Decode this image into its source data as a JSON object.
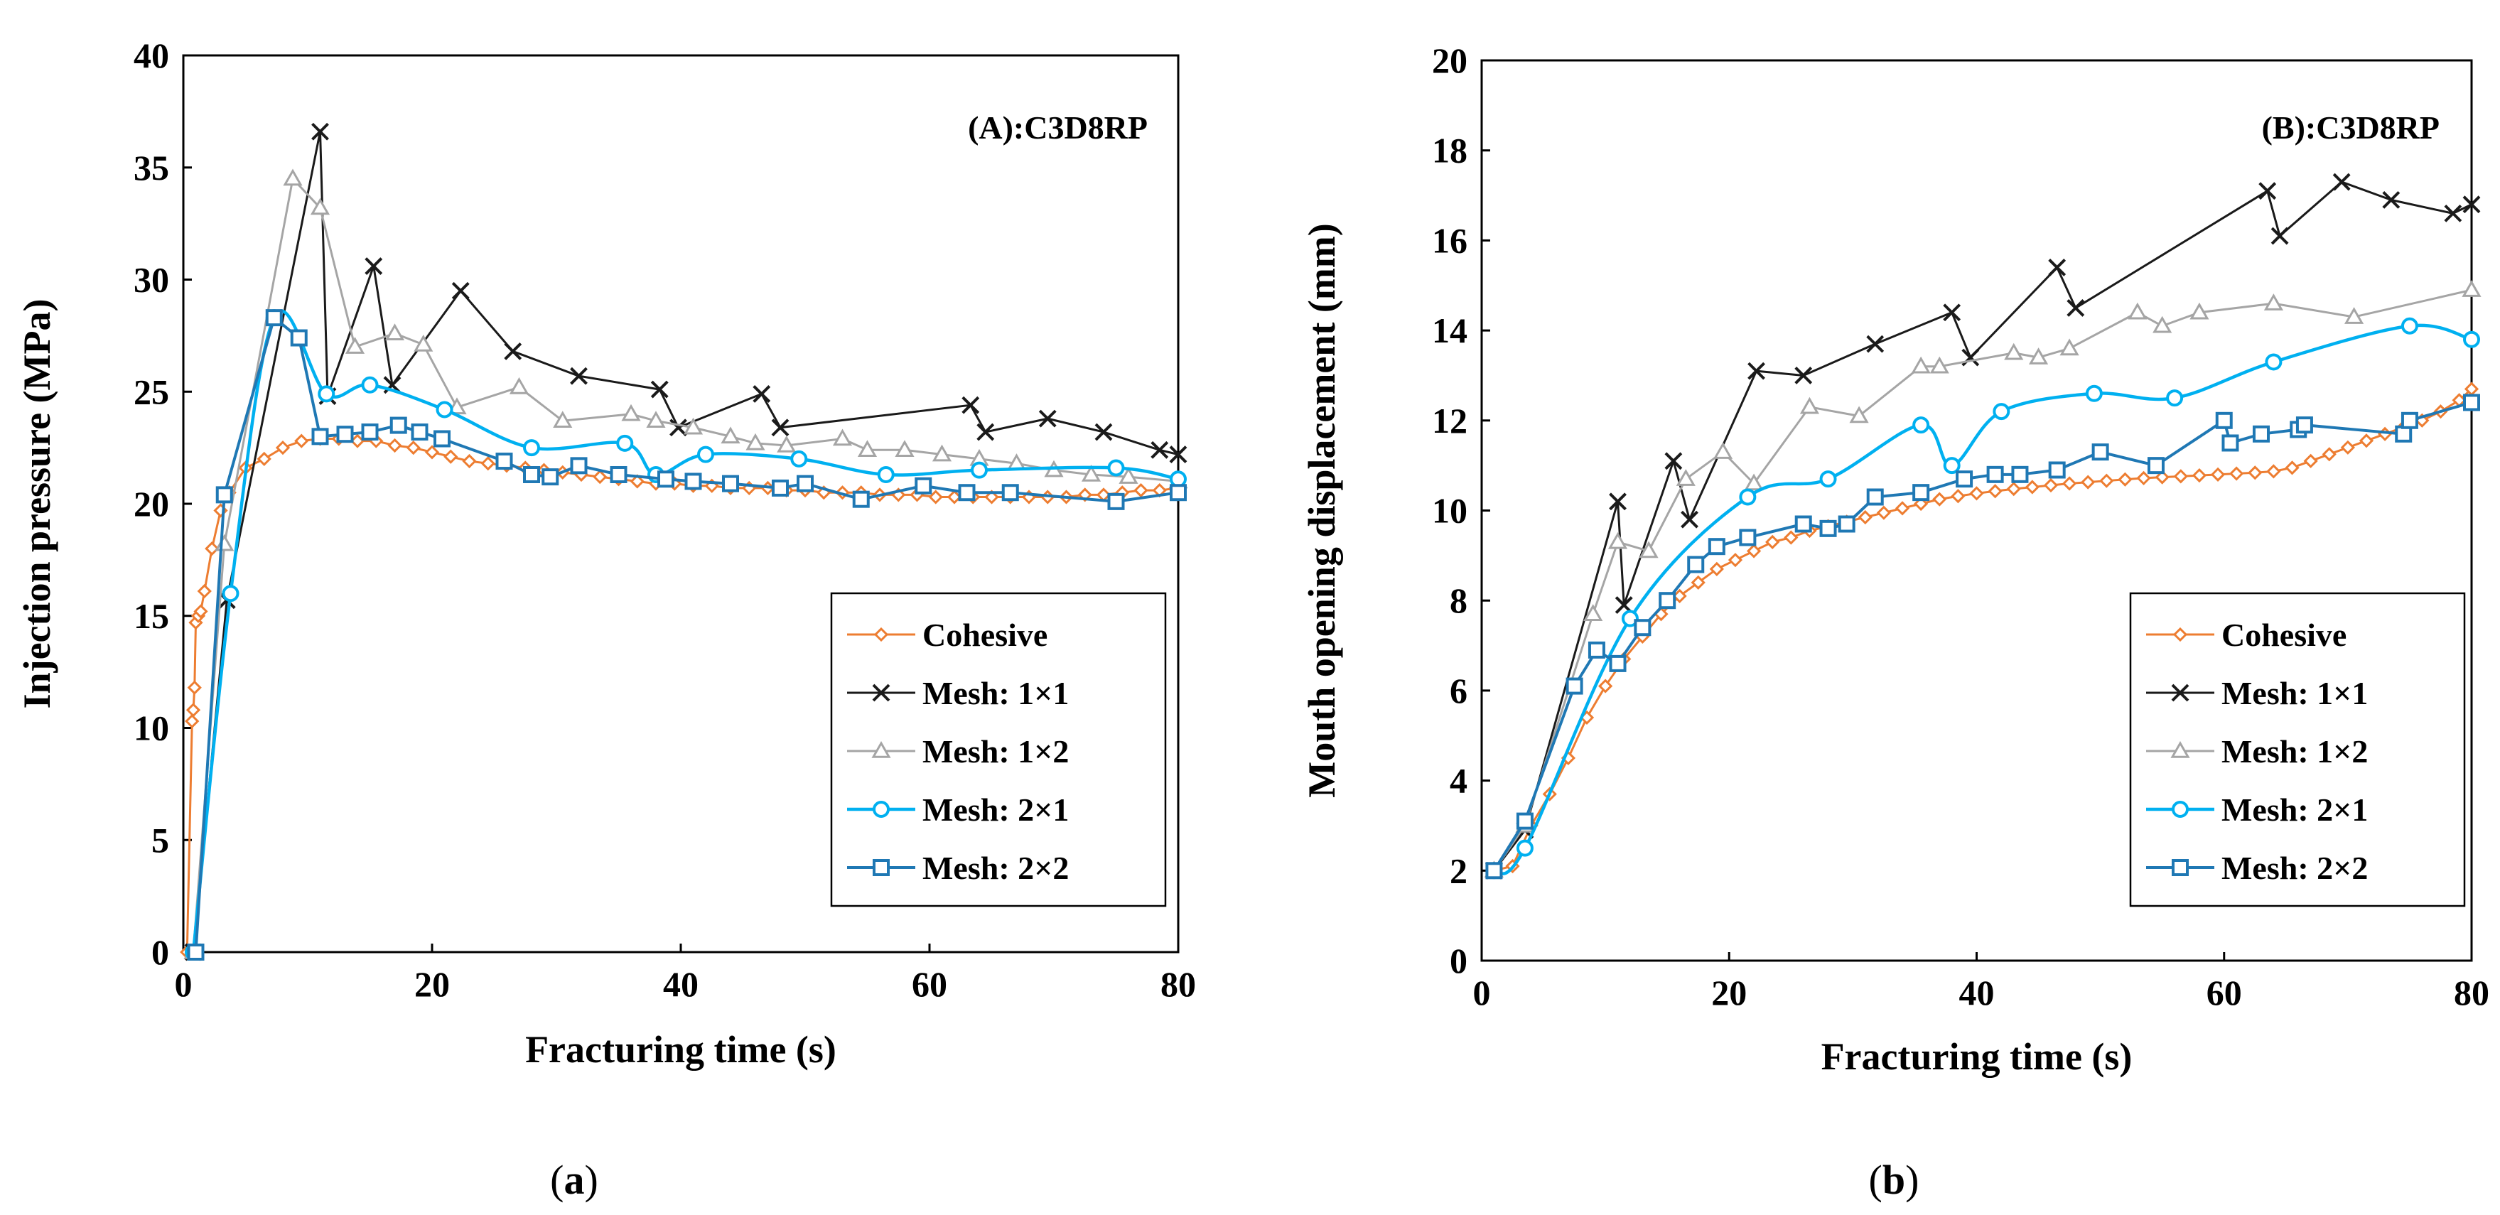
{
  "colors": {
    "cohesive": "#ED7D31",
    "mesh11": "#1A1A1A",
    "mesh12": "#A5A5A5",
    "mesh21": "#00B0F0",
    "mesh22": "#1F78B4",
    "grid": "#d0d0d0"
  },
  "captions": {
    "a": "a",
    "b": "b"
  },
  "chart_data": [
    {
      "type": "line",
      "panel": "a",
      "title": "(A):C3D8RP",
      "xlabel": "Fracturing time (s)",
      "ylabel": "Injection pressure (MPa)",
      "xlim": [
        0,
        80
      ],
      "ylim": [
        0,
        40
      ],
      "xticks": [
        0,
        20,
        40,
        60,
        80
      ],
      "yticks": [
        0,
        5,
        10,
        15,
        20,
        25,
        30,
        35,
        40
      ],
      "legend_position": "lower-right",
      "series": [
        {
          "name": "Cohesive",
          "key": "cohesive",
          "marker": "diamond",
          "smooth": false,
          "x": [
            0.3,
            0.7,
            0.8,
            0.9,
            1.0,
            1.2,
            1.4,
            1.7,
            2.3,
            3.0,
            3.7,
            5.0,
            6.5,
            8.0,
            9.5,
            11.0,
            12.5,
            14.0,
            15.5,
            17.0,
            18.5,
            20.0,
            21.5,
            23.0,
            24.5,
            26.0,
            27.5,
            29.0,
            30.5,
            32.0,
            33.5,
            35.0,
            36.5,
            38.0,
            39.5,
            41.0,
            42.5,
            44.0,
            45.5,
            47.0,
            48.5,
            50.0,
            51.5,
            53.0,
            54.5,
            56.0,
            57.5,
            59.0,
            60.5,
            62.0,
            63.5,
            65.0,
            66.5,
            68.0,
            69.5,
            71.0,
            72.5,
            74.0,
            75.5,
            77.0,
            78.5,
            80.0
          ],
          "y": [
            0,
            10.3,
            10.8,
            11.8,
            14.7,
            15.0,
            15.2,
            16.1,
            18.0,
            19.7,
            20.5,
            21.6,
            22.0,
            22.5,
            22.8,
            22.9,
            22.9,
            22.8,
            22.8,
            22.6,
            22.5,
            22.3,
            22.1,
            21.9,
            21.8,
            21.7,
            21.6,
            21.5,
            21.4,
            21.3,
            21.2,
            21.1,
            21.0,
            20.9,
            20.9,
            20.8,
            20.8,
            20.7,
            20.7,
            20.7,
            20.6,
            20.6,
            20.5,
            20.5,
            20.5,
            20.4,
            20.4,
            20.4,
            20.3,
            20.3,
            20.3,
            20.3,
            20.3,
            20.3,
            20.3,
            20.3,
            20.4,
            20.4,
            20.5,
            20.6,
            20.6,
            20.7
          ]
        },
        {
          "name": "Mesh: 1×1",
          "key": "mesh11",
          "marker": "x",
          "smooth": false,
          "x": [
            0.8,
            3.5,
            11.0,
            11.6,
            15.3,
            16.8,
            22.3,
            26.5,
            31.8,
            38.3,
            39.8,
            46.5,
            48.0,
            63.3,
            64.5,
            69.5,
            74.0,
            78.5,
            80.0
          ],
          "y": [
            0,
            15.7,
            36.6,
            24.8,
            30.6,
            25.3,
            29.5,
            26.8,
            25.7,
            25.1,
            23.4,
            24.9,
            23.4,
            24.4,
            23.2,
            23.8,
            23.2,
            22.4,
            22.2
          ]
        },
        {
          "name": "Mesh: 1×2",
          "key": "mesh12",
          "marker": "triangle",
          "smooth": false,
          "x": [
            0.8,
            3.3,
            8.8,
            11.0,
            13.8,
            17.0,
            19.3,
            22.0,
            27.0,
            30.5,
            36.0,
            38.0,
            41.0,
            44.0,
            46.0,
            48.5,
            53.0,
            55.0,
            58.0,
            61.0,
            64.0,
            67.0,
            70.0,
            73.0,
            76.0,
            80.0
          ],
          "y": [
            0,
            18.2,
            34.5,
            33.2,
            27.0,
            27.6,
            27.1,
            24.3,
            25.2,
            23.7,
            24.0,
            23.7,
            23.4,
            23.0,
            22.7,
            22.6,
            22.9,
            22.4,
            22.4,
            22.2,
            22.0,
            21.8,
            21.5,
            21.3,
            21.2,
            21.0
          ]
        },
        {
          "name": "Mesh: 2×1",
          "key": "mesh21",
          "marker": "circle",
          "smooth": true,
          "x": [
            0.8,
            3.8,
            7.3,
            11.5,
            15.0,
            21.0,
            28.0,
            35.5,
            38.0,
            42.0,
            49.5,
            56.5,
            64.0,
            75.0,
            80.0
          ],
          "y": [
            0,
            16.0,
            28.3,
            24.9,
            25.3,
            24.2,
            22.5,
            22.7,
            21.3,
            22.2,
            22.0,
            21.3,
            21.5,
            21.6,
            21.1
          ]
        },
        {
          "name": "Mesh: 2×2",
          "key": "mesh22",
          "marker": "square",
          "smooth": false,
          "x": [
            1.0,
            3.3,
            7.3,
            9.3,
            11.0,
            13.0,
            15.0,
            17.3,
            19.0,
            20.8,
            25.8,
            28.0,
            29.5,
            31.8,
            35.0,
            38.8,
            41.0,
            44.0,
            48.0,
            50.0,
            54.5,
            59.5,
            63.0,
            66.5,
            75.0,
            80.0
          ],
          "y": [
            0,
            20.4,
            28.3,
            27.4,
            23.0,
            23.1,
            23.2,
            23.5,
            23.2,
            22.9,
            21.9,
            21.3,
            21.2,
            21.7,
            21.3,
            21.1,
            21.0,
            20.9,
            20.7,
            20.9,
            20.2,
            20.8,
            20.5,
            20.5,
            20.1,
            20.5
          ]
        }
      ]
    },
    {
      "type": "line",
      "panel": "b",
      "title": "(B):C3D8RP",
      "xlabel": "Fracturing time (s)",
      "ylabel": "Mouth opening displacement (mm)",
      "xlim": [
        0,
        80
      ],
      "ylim": [
        0,
        20
      ],
      "xticks": [
        0,
        20,
        40,
        60,
        80
      ],
      "yticks": [
        0,
        2,
        4,
        6,
        8,
        10,
        12,
        14,
        16,
        18,
        20
      ],
      "legend_position": "lower-right",
      "series": [
        {
          "name": "Cohesive",
          "key": "cohesive",
          "marker": "diamond",
          "smooth": false,
          "x": [
            1.0,
            2.5,
            4.0,
            5.5,
            7.0,
            8.5,
            10.0,
            11.5,
            13.0,
            14.5,
            16.0,
            17.5,
            19.0,
            20.5,
            22.0,
            23.5,
            25.0,
            26.5,
            28.0,
            29.5,
            31.0,
            32.5,
            34.0,
            35.5,
            37.0,
            38.5,
            40.0,
            41.5,
            43.0,
            44.5,
            46.0,
            47.5,
            49.0,
            50.5,
            52.0,
            53.5,
            55.0,
            56.5,
            58.0,
            59.5,
            61.0,
            62.5,
            64.0,
            65.5,
            67.0,
            68.5,
            70.0,
            71.5,
            73.0,
            74.5,
            76.0,
            77.5,
            79.0,
            80.0
          ],
          "y": [
            2.0,
            2.1,
            3.0,
            3.7,
            4.5,
            5.4,
            6.1,
            6.7,
            7.2,
            7.7,
            8.1,
            8.4,
            8.7,
            8.9,
            9.1,
            9.3,
            9.4,
            9.55,
            9.65,
            9.75,
            9.85,
            9.95,
            10.05,
            10.15,
            10.25,
            10.32,
            10.38,
            10.43,
            10.48,
            10.52,
            10.56,
            10.6,
            10.63,
            10.66,
            10.69,
            10.72,
            10.74,
            10.76,
            10.78,
            10.8,
            10.82,
            10.84,
            10.87,
            10.95,
            11.1,
            11.25,
            11.4,
            11.55,
            11.7,
            11.85,
            12.0,
            12.2,
            12.45,
            12.7
          ]
        },
        {
          "name": "Mesh: 1×1",
          "key": "mesh11",
          "marker": "x",
          "smooth": false,
          "x": [
            1.0,
            3.5,
            11.0,
            11.5,
            15.5,
            16.8,
            22.2,
            26.0,
            31.8,
            38.0,
            39.5,
            46.5,
            48.0,
            63.5,
            64.5,
            69.5,
            73.5,
            78.5,
            80.0
          ],
          "y": [
            2.0,
            2.9,
            10.2,
            7.9,
            11.1,
            9.8,
            13.1,
            13.0,
            13.7,
            14.4,
            13.4,
            15.4,
            14.5,
            17.1,
            16.1,
            17.3,
            16.9,
            16.6,
            16.8
          ]
        },
        {
          "name": "Mesh: 1×2",
          "key": "mesh12",
          "marker": "triangle",
          "smooth": false,
          "x": [
            1.0,
            3.5,
            9.0,
            11.0,
            13.5,
            16.5,
            19.5,
            22.0,
            26.5,
            30.5,
            35.5,
            37.0,
            43.0,
            45.0,
            47.5,
            53.0,
            55.0,
            58.0,
            64.0,
            70.5,
            80.0
          ],
          "y": [
            2.0,
            3.0,
            7.7,
            9.3,
            9.1,
            10.7,
            11.3,
            10.6,
            12.3,
            12.1,
            13.2,
            13.2,
            13.5,
            13.4,
            13.6,
            14.4,
            14.1,
            14.4,
            14.6,
            14.3,
            14.9
          ]
        },
        {
          "name": "Mesh: 2×1",
          "key": "mesh21",
          "marker": "circle",
          "smooth": true,
          "x": [
            1.0,
            3.5,
            12.0,
            21.5,
            28.0,
            35.5,
            38.0,
            42.0,
            49.5,
            56.0,
            64.0,
            75.0,
            80.0
          ],
          "y": [
            2.0,
            2.5,
            7.6,
            10.3,
            10.7,
            11.9,
            11.0,
            12.2,
            12.6,
            12.5,
            13.3,
            14.1,
            13.8
          ]
        },
        {
          "name": "Mesh: 2×2",
          "key": "mesh22",
          "marker": "square",
          "smooth": false,
          "x": [
            1.0,
            3.5,
            7.5,
            9.3,
            11.0,
            13.0,
            15.0,
            17.3,
            19.0,
            21.5,
            26.0,
            28.0,
            29.5,
            31.8,
            35.5,
            39.0,
            41.5,
            43.5,
            46.5,
            50.0,
            54.5,
            60.0,
            60.5,
            63.0,
            66.0,
            66.5,
            74.5,
            75.0,
            80.0
          ],
          "y": [
            2.0,
            3.1,
            6.1,
            6.9,
            6.6,
            7.4,
            8.0,
            8.8,
            9.2,
            9.4,
            9.7,
            9.6,
            9.7,
            10.3,
            10.4,
            10.7,
            10.8,
            10.8,
            10.9,
            11.3,
            11.0,
            12.0,
            11.5,
            11.7,
            11.8,
            11.9,
            11.7,
            12.0,
            12.4
          ]
        }
      ]
    }
  ]
}
